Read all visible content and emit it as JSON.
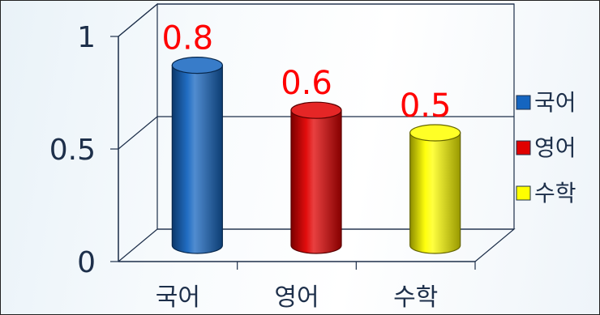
{
  "chart_data": {
    "type": "bar",
    "style": "3d-cylinder",
    "categories": [
      "국어",
      "영어",
      "수학"
    ],
    "values": [
      0.8,
      0.6,
      0.5
    ],
    "value_labels": [
      "0.8",
      "0.6",
      "0.5"
    ],
    "colors": [
      "#1565c0",
      "#e00000",
      "#ffff00"
    ],
    "ylim": [
      0,
      1
    ],
    "yticks": [
      0,
      0.5,
      1
    ],
    "ytick_labels": [
      "0",
      "0.5",
      "1"
    ],
    "grid": true,
    "legend": {
      "placement": "right",
      "entries": [
        {
          "label": "국어",
          "color": "#1565c0"
        },
        {
          "label": "영어",
          "color": "#e00000"
        },
        {
          "label": "수학",
          "color": "#ffff00"
        }
      ]
    },
    "data_label_color": "#ff0000"
  }
}
